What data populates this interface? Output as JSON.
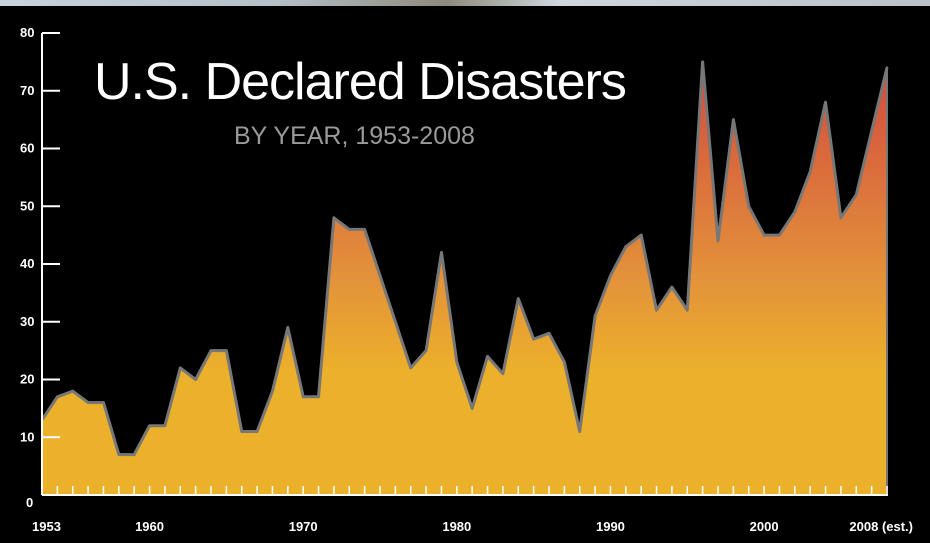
{
  "chart_data": {
    "type": "area",
    "title": "U.S. Declared Disasters",
    "subtitle": "BY YEAR, 1953-2008",
    "xlabel": "",
    "ylabel": "",
    "ylim": [
      0,
      80
    ],
    "xlim": [
      1953,
      2008
    ],
    "grid": false,
    "legend": "none",
    "yticks": [
      0,
      10,
      20,
      30,
      40,
      50,
      60,
      70,
      80
    ],
    "ytick_labels": [
      "0",
      "10",
      "20",
      "30",
      "40",
      "50",
      "60",
      "70",
      "80"
    ],
    "xtick_labels": [
      {
        "year": 1953,
        "label": "1953"
      },
      {
        "year": 1960,
        "label": "1960"
      },
      {
        "year": 1970,
        "label": "1970"
      },
      {
        "year": 1980,
        "label": "1980"
      },
      {
        "year": 1990,
        "label": "1990"
      },
      {
        "year": 2000,
        "label": "2000"
      },
      {
        "year": 2008,
        "label": "2008 (est.)"
      }
    ],
    "x": [
      1953,
      1954,
      1955,
      1956,
      1957,
      1958,
      1959,
      1960,
      1961,
      1962,
      1963,
      1964,
      1965,
      1966,
      1967,
      1968,
      1969,
      1970,
      1971,
      1972,
      1973,
      1974,
      1975,
      1976,
      1977,
      1978,
      1979,
      1980,
      1981,
      1982,
      1983,
      1984,
      1985,
      1986,
      1987,
      1988,
      1989,
      1990,
      1991,
      1992,
      1993,
      1994,
      1995,
      1996,
      1997,
      1998,
      1999,
      2000,
      2001,
      2002,
      2003,
      2004,
      2005,
      2006,
      2007,
      2008
    ],
    "series": [
      {
        "values": [
          13,
          17,
          18,
          16,
          16,
          7,
          7,
          12,
          12,
          22,
          20,
          25,
          25,
          11,
          11,
          18,
          29,
          17,
          17,
          48,
          46,
          46,
          38,
          30,
          22,
          25,
          42,
          23,
          15,
          24,
          21,
          34,
          27,
          28,
          23,
          11,
          31,
          38,
          43,
          45,
          32,
          36,
          32,
          75,
          44,
          65,
          50,
          45,
          45,
          49,
          56,
          68,
          48,
          52,
          63,
          74
        ]
      }
    ],
    "colors": {
      "background": "#000000",
      "fill_top": "#d2493e",
      "fill_mid": "#e3923a",
      "fill_bottom": "#ecb12a",
      "outline": "#777777",
      "axis": "#ffffff",
      "subtitle": "#9a9a9a"
    }
  }
}
